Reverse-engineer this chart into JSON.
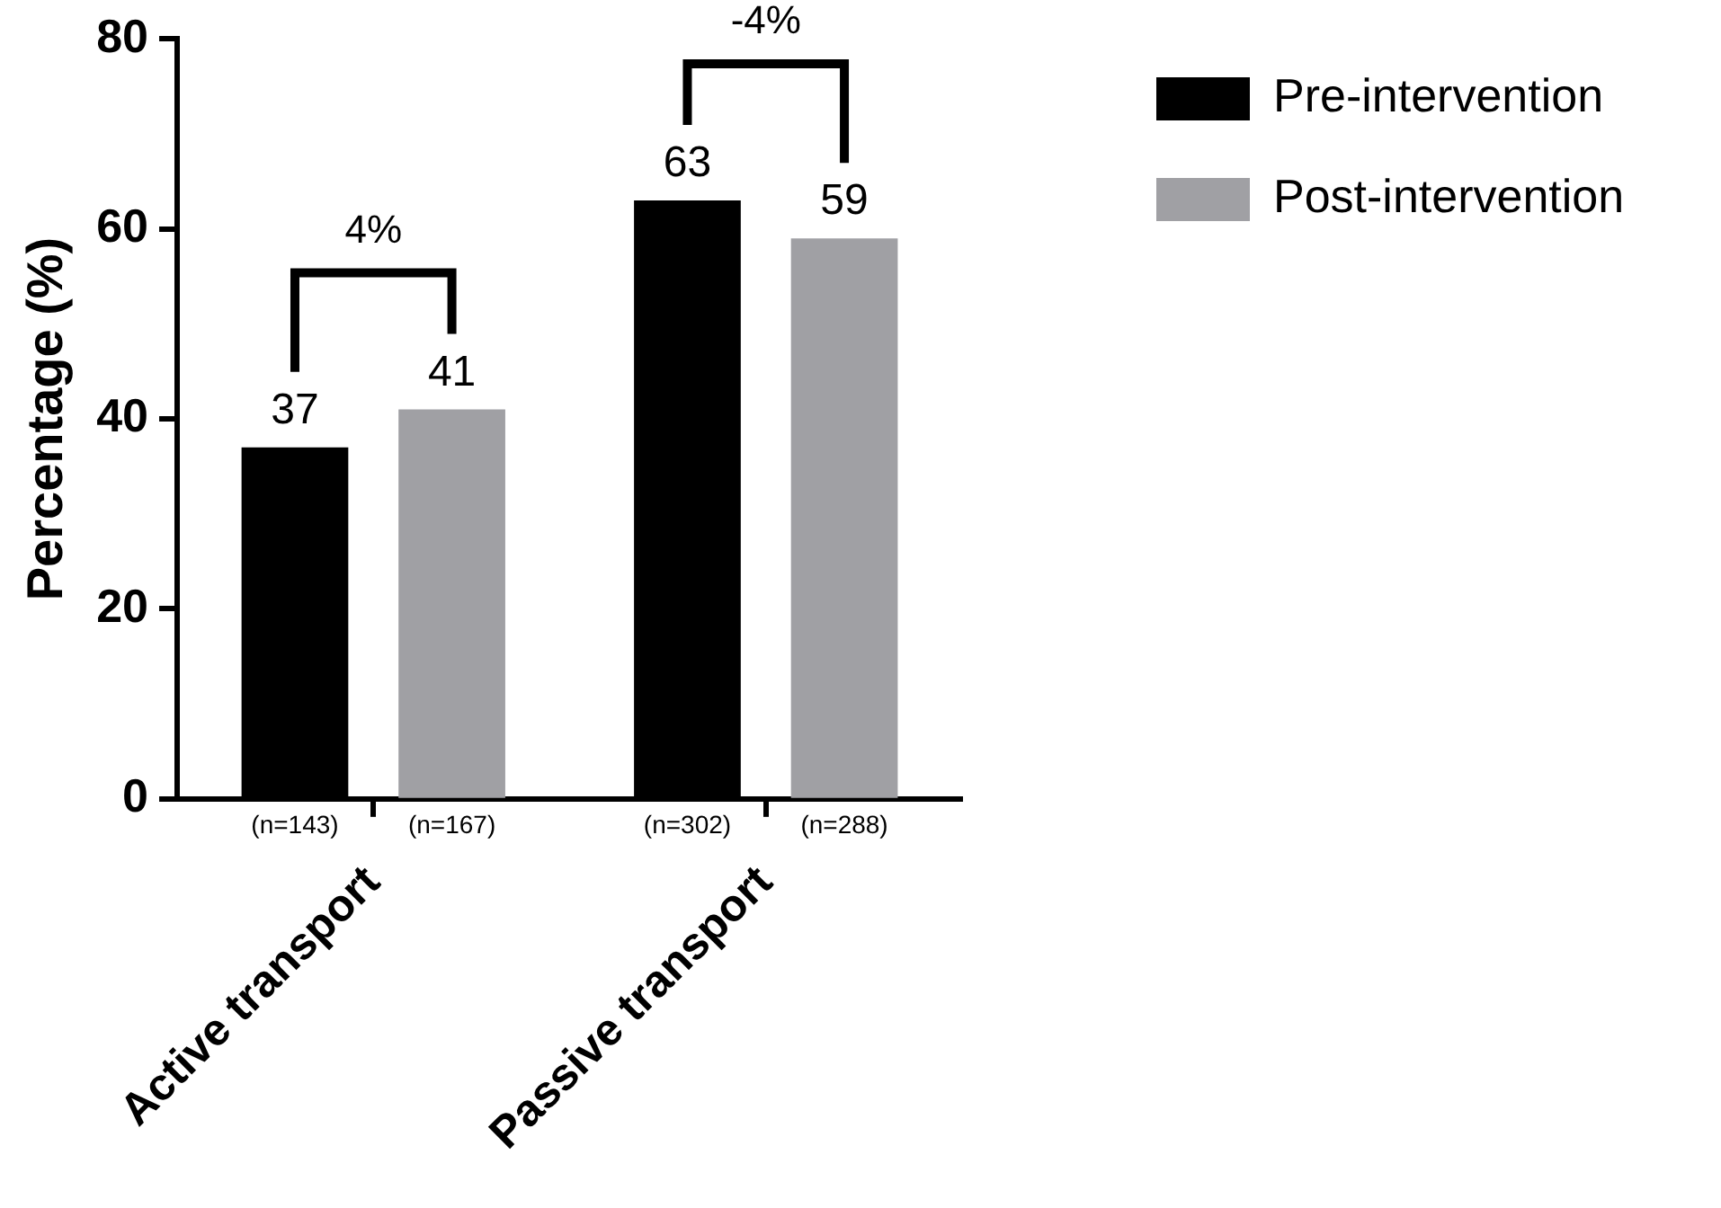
{
  "chart_data": {
    "type": "bar",
    "ylabel": "Percentage (%)",
    "categories": [
      "Active transport",
      "Passive transport"
    ],
    "series": [
      {
        "name": "Pre-intervention",
        "color": "#000000",
        "values": [
          37,
          63
        ]
      },
      {
        "name": "Post-intervention",
        "color": "#a0a0a4",
        "values": [
          41,
          59
        ]
      }
    ],
    "ylim": [
      0,
      80
    ],
    "yticks": [
      0,
      20,
      40,
      60,
      80
    ],
    "data_labels": true,
    "legend": "top right",
    "grid": false,
    "annotations": [
      "4%",
      "-4%",
      "(n=143)",
      "(n=167)",
      "(n=302)",
      "(n=288)"
    ]
  }
}
